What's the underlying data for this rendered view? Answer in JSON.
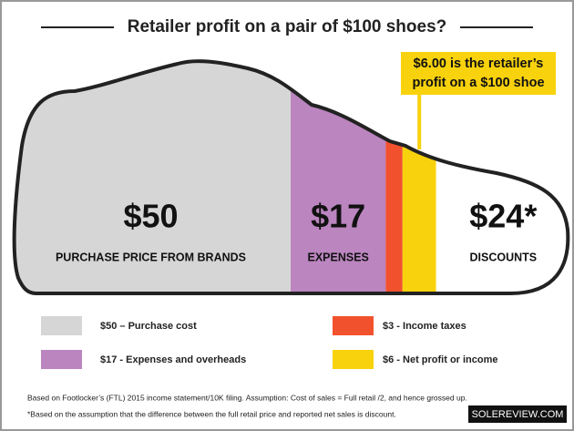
{
  "chart_data": {
    "type": "shoe-stack",
    "title": "Retailer profit on a pair of $100 shoes?",
    "categories": [
      "PURCHASE PRICE FROM BRANDS",
      "EXPENSES",
      null,
      null,
      "DISCOUNTS"
    ],
    "values": [
      50,
      17,
      3,
      6,
      24
    ],
    "value_labels": [
      "$50",
      "$17",
      null,
      null,
      "$24*"
    ],
    "colors": [
      "#d6d6d6",
      "#bb85bf",
      "#f2512e",
      "#f8d20d",
      "#ffffff"
    ],
    "legend": [
      "$50 – Purchase cost",
      "$17 - Expenses and overheads",
      "$3 - Income taxes",
      "$6 - Net profit or income"
    ],
    "annotation": [
      "$6.00 is the retailer’s",
      "profit on a $100 shoe"
    ],
    "notes": [
      "Based on Footlocker’s (FTL) 2015 income statement/10K filing. Assumption: Cost of sales = Full retail /2, and hence grossed up.",
      "*Based on the assumption that the difference between the full retail price and reported  net sales is discount."
    ],
    "source": "SOLEREVIEW.COM"
  }
}
